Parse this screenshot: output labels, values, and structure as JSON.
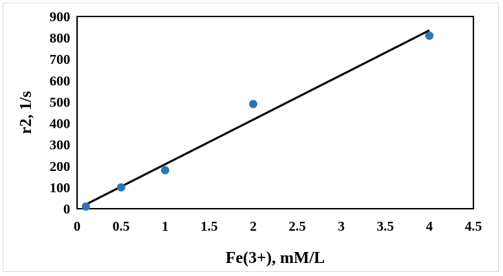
{
  "chart_data": {
    "type": "scatter",
    "title": "",
    "xlabel": "Fe(3+), mM/L",
    "ylabel": "r2, 1/s",
    "xlim": [
      0,
      4.5
    ],
    "ylim": [
      0,
      900
    ],
    "x_ticks": [
      "0",
      "0.5",
      "1",
      "1.5",
      "2",
      "2.5",
      "3",
      "3.5",
      "4",
      "4.5"
    ],
    "y_ticks": [
      "0",
      "100",
      "200",
      "300",
      "400",
      "500",
      "600",
      "700",
      "800",
      "900"
    ],
    "grid": false,
    "legend": "none",
    "series": [
      {
        "x": [
          0.1,
          0.5,
          1,
          2,
          4
        ],
        "y": [
          10,
          100,
          180,
          490,
          810
        ],
        "color": "#2e75b6",
        "marker": "circle"
      }
    ],
    "trendline": {
      "type": "linear",
      "color": "#000000",
      "x": [
        0.1,
        4
      ],
      "y": [
        20,
        835
      ]
    }
  }
}
